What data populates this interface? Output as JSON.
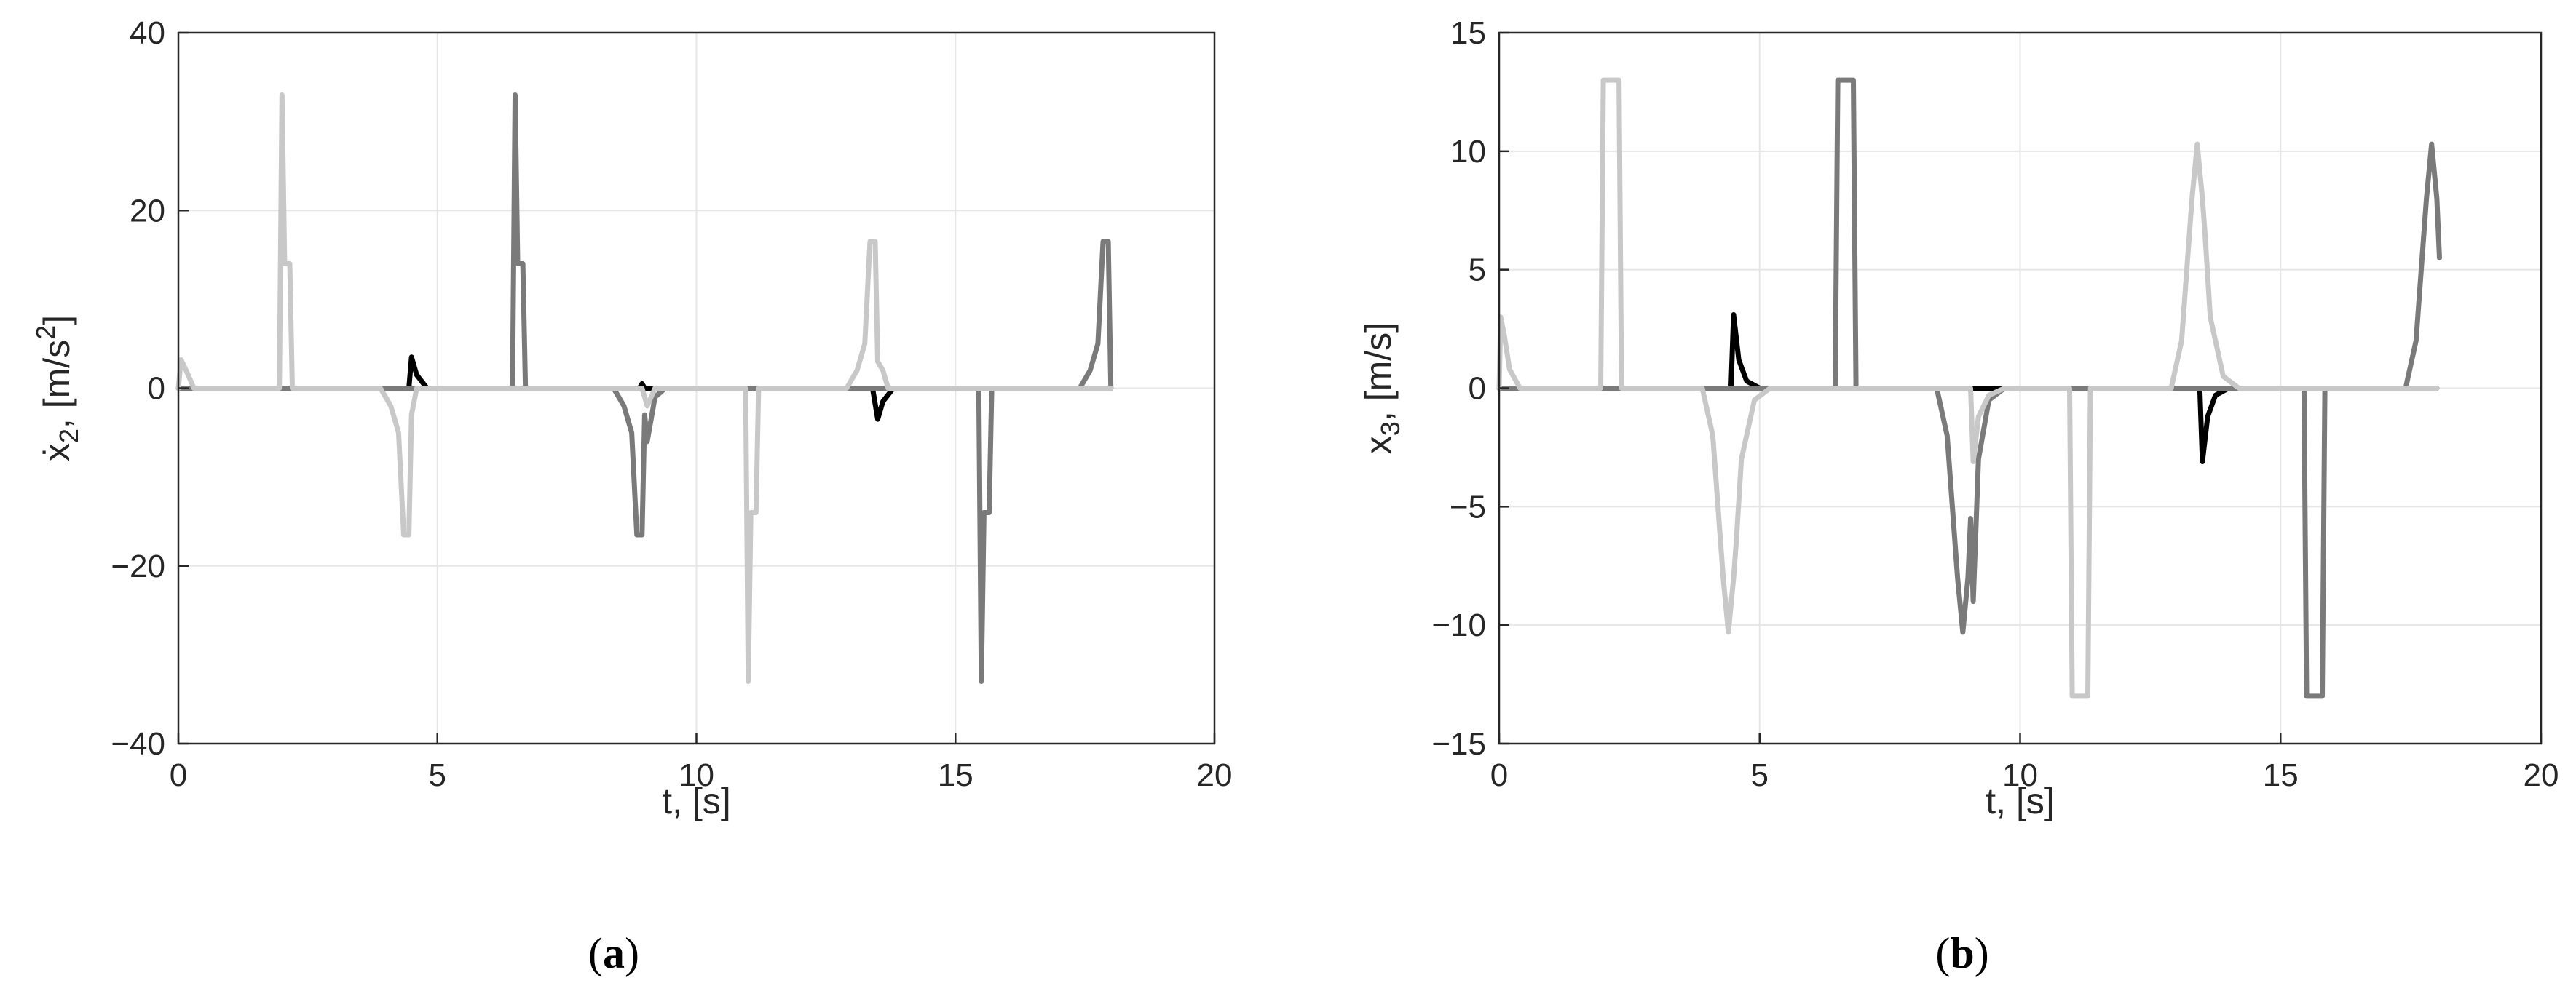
{
  "charts": [
    {
      "caption": {
        "open": "(",
        "letter": "a",
        "close": ")"
      },
      "xlabel": "t, [s]",
      "ylabel": {
        "base": "ẋ",
        "sub": "2",
        "mid": ", [m/s",
        "sup": "2",
        "end": "]"
      }
    },
    {
      "caption": {
        "open": "(",
        "letter": "b",
        "close": ")"
      },
      "xlabel": "t, [s]",
      "ylabel": {
        "base": "x",
        "sub": "3",
        "mid": ", [m/s]",
        "sup": "",
        "end": ""
      }
    }
  ],
  "chart_data": [
    {
      "type": "line",
      "xlabel": "t, [s]",
      "ylabel": "ẋ2, [m/s2]",
      "xlim": [
        0,
        20
      ],
      "ylim": [
        -40,
        40
      ],
      "xticks": [
        0,
        5,
        10,
        15,
        20
      ],
      "yticks": [
        -40,
        -20,
        0,
        20,
        40
      ],
      "xtick_labels": [
        "0",
        "5",
        "10",
        "15",
        "20"
      ],
      "ytick_labels": [
        "−40",
        "−20",
        "0",
        "20",
        "40"
      ],
      "grid": true,
      "series": [
        {
          "color": "#000000",
          "points": [
            [
              0,
              0
            ],
            [
              2.0,
              0
            ],
            [
              2.2,
              0
            ],
            [
              4.45,
              0
            ],
            [
              4.5,
              3.5
            ],
            [
              4.6,
              1.5
            ],
            [
              4.8,
              0
            ],
            [
              6.4,
              0
            ],
            [
              8.9,
              0
            ],
            [
              8.95,
              0.5
            ],
            [
              9.0,
              0
            ],
            [
              10.95,
              0
            ],
            [
              11.1,
              0
            ],
            [
              13.4,
              0
            ],
            [
              13.5,
              -3.5
            ],
            [
              13.6,
              -1.5
            ],
            [
              13.8,
              0
            ],
            [
              15.5,
              0
            ],
            [
              18.0,
              0
            ]
          ]
        },
        {
          "color": "#c8c8c8",
          "points": [
            [
              0,
              0
            ],
            [
              0.05,
              3.2
            ],
            [
              0.15,
              2
            ],
            [
              0.3,
              0
            ],
            [
              1.95,
              0
            ],
            [
              2.0,
              33
            ],
            [
              2.05,
              14
            ],
            [
              2.15,
              14
            ],
            [
              2.2,
              0
            ],
            [
              3.9,
              0
            ],
            [
              4.1,
              -2
            ],
            [
              4.25,
              -5
            ],
            [
              4.35,
              -16.5
            ],
            [
              4.45,
              -16.5
            ],
            [
              4.5,
              -3
            ],
            [
              4.6,
              0
            ],
            [
              8.95,
              0
            ],
            [
              9.05,
              -2
            ],
            [
              9.2,
              0
            ],
            [
              10.95,
              0
            ],
            [
              11.0,
              -33
            ],
            [
              11.05,
              -14
            ],
            [
              11.15,
              -14
            ],
            [
              11.2,
              0
            ],
            [
              12.9,
              0
            ],
            [
              13.1,
              2
            ],
            [
              13.25,
              5
            ],
            [
              13.35,
              16.5
            ],
            [
              13.45,
              16.5
            ],
            [
              13.5,
              3
            ],
            [
              13.6,
              2
            ],
            [
              13.7,
              0
            ],
            [
              18.0,
              0
            ]
          ]
        },
        {
          "color": "#7a7a7a",
          "points": [
            [
              0,
              0
            ],
            [
              6.45,
              0
            ],
            [
              6.5,
              33
            ],
            [
              6.55,
              14
            ],
            [
              6.65,
              14
            ],
            [
              6.7,
              0
            ],
            [
              8.4,
              0
            ],
            [
              8.6,
              -2
            ],
            [
              8.75,
              -5
            ],
            [
              8.85,
              -16.5
            ],
            [
              8.95,
              -16.5
            ],
            [
              9.0,
              -3
            ],
            [
              9.05,
              -6
            ],
            [
              9.2,
              -1
            ],
            [
              9.4,
              0
            ],
            [
              15.45,
              0
            ],
            [
              15.5,
              -33
            ],
            [
              15.55,
              -14
            ],
            [
              15.65,
              -14
            ],
            [
              15.7,
              0
            ],
            [
              17.4,
              0
            ],
            [
              17.6,
              2
            ],
            [
              17.75,
              5
            ],
            [
              17.85,
              16.5
            ],
            [
              17.95,
              16.5
            ],
            [
              18.0,
              0
            ]
          ]
        }
      ]
    },
    {
      "type": "line",
      "xlabel": "t, [s]",
      "ylabel": "x3, [m/s]",
      "xlim": [
        0,
        20
      ],
      "ylim": [
        -15,
        15
      ],
      "xticks": [
        0,
        5,
        10,
        15,
        20
      ],
      "yticks": [
        -15,
        -10,
        -5,
        0,
        5,
        10,
        15
      ],
      "xtick_labels": [
        "0",
        "5",
        "10",
        "15",
        "20"
      ],
      "ytick_labels": [
        "−15",
        "−10",
        "−5",
        "0",
        "5",
        "10",
        "15"
      ],
      "grid": true,
      "series": [
        {
          "color": "#000000",
          "points": [
            [
              0,
              0
            ],
            [
              4.45,
              0
            ],
            [
              4.5,
              3.1
            ],
            [
              4.6,
              1.2
            ],
            [
              4.75,
              0.3
            ],
            [
              5.0,
              0
            ],
            [
              13.45,
              0
            ],
            [
              13.5,
              -3.1
            ],
            [
              13.6,
              -1.2
            ],
            [
              13.75,
              -0.3
            ],
            [
              14.0,
              0
            ],
            [
              18.0,
              0
            ]
          ]
        },
        {
          "color": "#c8c8c8",
          "points": [
            [
              0,
              0
            ],
            [
              0.03,
              3.0
            ],
            [
              0.1,
              2.2
            ],
            [
              0.2,
              0.8
            ],
            [
              0.4,
              0
            ],
            [
              1.95,
              0
            ],
            [
              2.0,
              13
            ],
            [
              2.3,
              13
            ],
            [
              2.35,
              0
            ],
            [
              3.9,
              0
            ],
            [
              4.1,
              -2
            ],
            [
              4.3,
              -8
            ],
            [
              4.4,
              -10.3
            ],
            [
              4.5,
              -8
            ],
            [
              4.55,
              -6.5
            ],
            [
              4.65,
              -3
            ],
            [
              4.9,
              -0.5
            ],
            [
              5.2,
              0
            ],
            [
              9.05,
              0
            ],
            [
              9.1,
              -3.1
            ],
            [
              9.2,
              -1.2
            ],
            [
              9.4,
              -0.3
            ],
            [
              9.7,
              0
            ],
            [
              10.95,
              0
            ],
            [
              11.0,
              -13
            ],
            [
              11.3,
              -13
            ],
            [
              11.35,
              0
            ],
            [
              12.9,
              0
            ],
            [
              13.1,
              2
            ],
            [
              13.3,
              8
            ],
            [
              13.4,
              10.3
            ],
            [
              13.5,
              8
            ],
            [
              13.55,
              6.5
            ],
            [
              13.65,
              3
            ],
            [
              13.9,
              0.5
            ],
            [
              14.2,
              0
            ],
            [
              18.0,
              0
            ]
          ]
        },
        {
          "color": "#7a7a7a",
          "points": [
            [
              0,
              0
            ],
            [
              6.45,
              0
            ],
            [
              6.5,
              13
            ],
            [
              6.8,
              13
            ],
            [
              6.85,
              0
            ],
            [
              8.4,
              0
            ],
            [
              8.6,
              -2
            ],
            [
              8.8,
              -8
            ],
            [
              8.9,
              -10.3
            ],
            [
              9.0,
              -8
            ],
            [
              9.05,
              -5.5
            ],
            [
              9.1,
              -9
            ],
            [
              9.2,
              -3
            ],
            [
              9.4,
              -0.5
            ],
            [
              9.7,
              0
            ],
            [
              15.45,
              0
            ],
            [
              15.5,
              -13
            ],
            [
              15.8,
              -13
            ],
            [
              15.85,
              0
            ],
            [
              17.4,
              0
            ],
            [
              17.6,
              2
            ],
            [
              17.8,
              8
            ],
            [
              17.9,
              10.3
            ],
            [
              18.0,
              8
            ],
            [
              18.05,
              5.5
            ]
          ]
        }
      ]
    }
  ]
}
